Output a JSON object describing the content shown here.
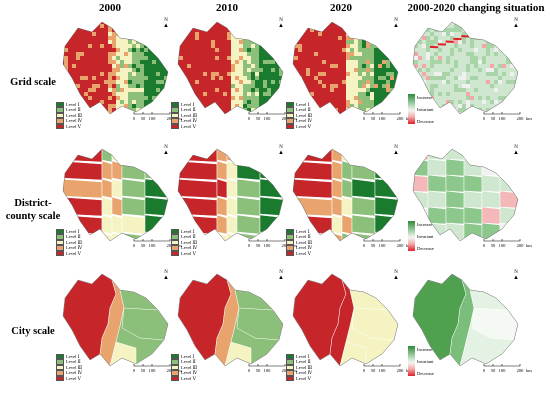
{
  "columns": [
    "2000",
    "2010",
    "2020",
    "2000-2020 changing situation"
  ],
  "rows": [
    "Grid scale",
    "District-county scale",
    "City scale"
  ],
  "legend_levels": [
    {
      "label": "Level Ⅰ",
      "color": "#1a7a2e"
    },
    {
      "label": "Level Ⅱ",
      "color": "#8cc07a"
    },
    {
      "label": "Level Ⅲ",
      "color": "#f5f3c2"
    },
    {
      "label": "Level Ⅳ",
      "color": "#e9a46e"
    },
    {
      "label": "Level Ⅴ",
      "color": "#c6252a"
    }
  ],
  "change_legend": {
    "increase": "Increase",
    "invariant": "Invariant",
    "decrease": "Decrease"
  },
  "scalebar": {
    "ticks": [
      "0",
      "50",
      "100",
      "200"
    ],
    "unit": "km"
  },
  "north_label": "N",
  "colors": {
    "level1": "#1a7a2e",
    "level2": "#8cc07a",
    "level3": "#f5f3c2",
    "level4": "#e9a46e",
    "level5": "#c6252a",
    "increase": "#2e8b3c",
    "decrease": "#e0202a",
    "invariant": "#f2f2f2"
  }
}
